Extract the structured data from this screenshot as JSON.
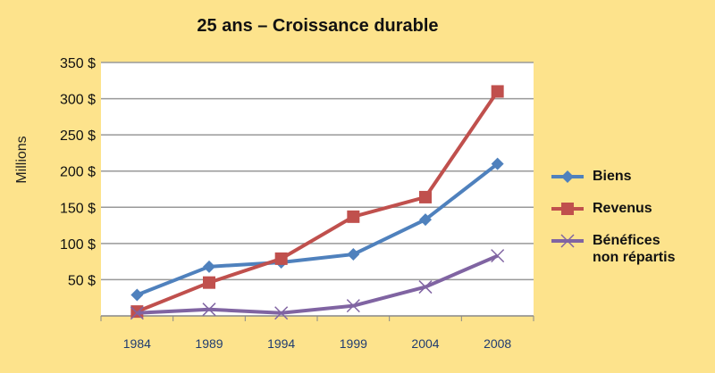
{
  "chart_data": {
    "type": "line",
    "title": "25 ans – Croissance durable",
    "xlabel": "",
    "ylabel": "Millions",
    "categories": [
      "1984",
      "1989",
      "1994",
      "1999",
      "2004",
      "2008"
    ],
    "ylim": [
      0,
      350
    ],
    "yticks": [
      50,
      100,
      150,
      200,
      250,
      300,
      350
    ],
    "ytick_labels": [
      "50  $",
      "100 $",
      "150 $",
      "200 $",
      "250 $",
      "300 $",
      "350 $"
    ],
    "grid": true,
    "legend_position": "right",
    "series": [
      {
        "name": "Biens",
        "color": "#4F81BD",
        "marker": "diamond",
        "values": [
          29,
          68,
          74,
          85,
          133,
          210
        ]
      },
      {
        "name": "Revenus",
        "color": "#C0504D",
        "marker": "square",
        "values": [
          6,
          46,
          79,
          137,
          164,
          310
        ]
      },
      {
        "name": "Bénéfices non répartis",
        "color": "#8064A2",
        "marker": "x",
        "values": [
          4,
          9,
          4,
          14,
          40,
          83
        ]
      }
    ]
  }
}
